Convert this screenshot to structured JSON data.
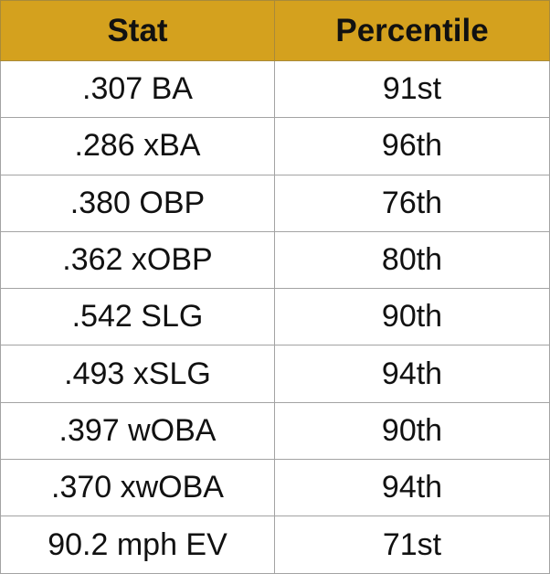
{
  "table": {
    "headers": [
      "Stat",
      "Percentile"
    ],
    "rows": [
      {
        "stat": ".307 BA",
        "percentile": "91st"
      },
      {
        "stat": ".286 xBA",
        "percentile": "96th"
      },
      {
        "stat": ".380 OBP",
        "percentile": "76th"
      },
      {
        "stat": ".362 xOBP",
        "percentile": "80th"
      },
      {
        "stat": ".542 SLG",
        "percentile": "90th"
      },
      {
        "stat": ".493 xSLG",
        "percentile": "94th"
      },
      {
        "stat": ".397 wOBA",
        "percentile": "90th"
      },
      {
        "stat": ".370 xwOBA",
        "percentile": "94th"
      },
      {
        "stat": "90.2 mph EV",
        "percentile": "71st"
      }
    ]
  },
  "colors": {
    "header_background": "#d4a11e",
    "border": "#a3a3a3",
    "text": "#111111"
  }
}
